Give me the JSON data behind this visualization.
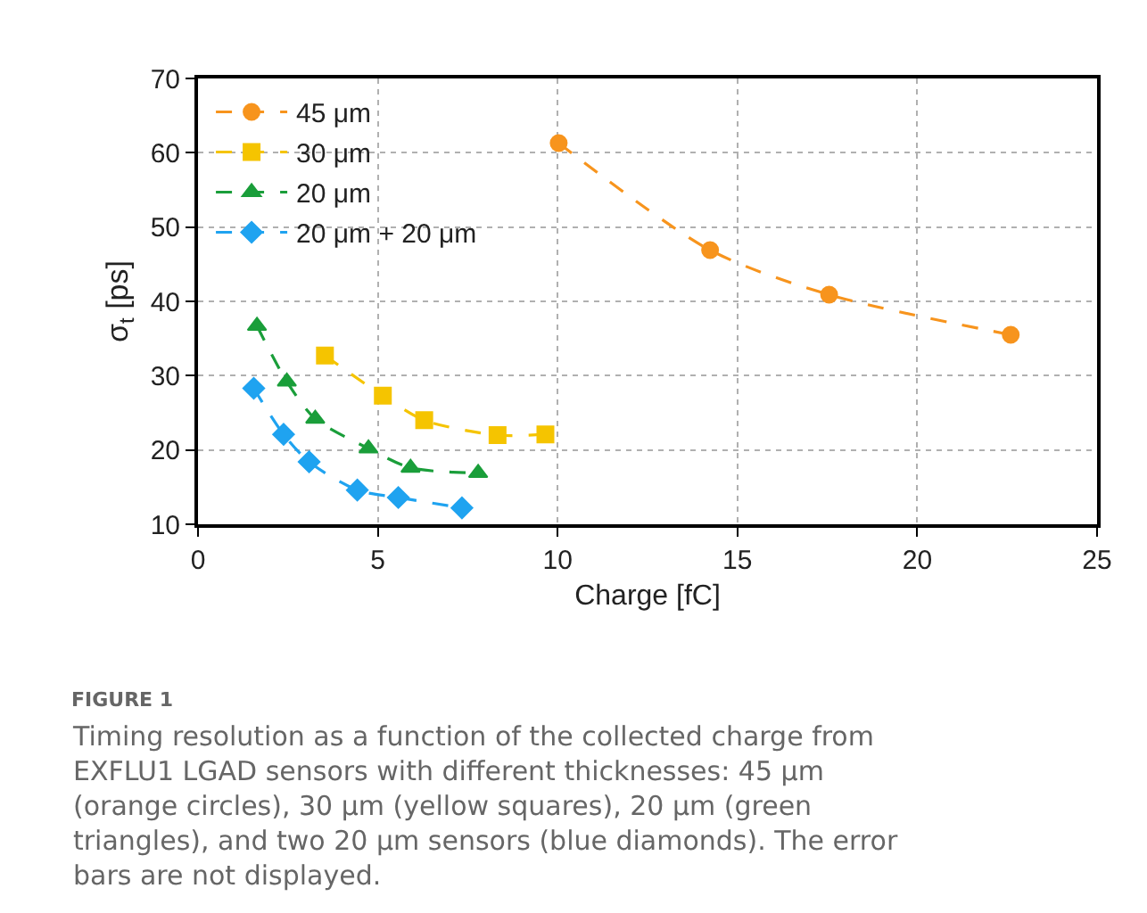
{
  "chart_data": {
    "type": "line",
    "xlabel": "Charge [fC]",
    "ylabel": "σ$_{t}$ [ps]",
    "xlim": [
      0,
      25
    ],
    "xticks": [
      0,
      5,
      10,
      15,
      20,
      25
    ],
    "ylim": [
      10,
      70
    ],
    "yticks": [
      10,
      20,
      30,
      40,
      50,
      60,
      70
    ],
    "grid": true,
    "legend": "top left",
    "line_style": "dashed",
    "series": [
      {
        "name": "45 μm",
        "color": "#f7941d",
        "marker": "circle",
        "x": [
          10.03,
          14.24,
          17.55,
          22.6
        ],
        "values": [
          61.3,
          46.9,
          40.9,
          35.5
        ]
      },
      {
        "name": "30 μm",
        "color": "#f5c400",
        "marker": "square",
        "x": [
          3.53,
          5.14,
          6.29,
          8.33,
          9.66
        ],
        "values": [
          32.7,
          27.3,
          24.0,
          22.0,
          22.1
        ]
      },
      {
        "name": "20 μm",
        "color": "#1a9e3a",
        "marker": "triangle",
        "x": [
          1.64,
          2.47,
          3.26,
          4.74,
          5.91,
          7.79
        ],
        "values": [
          36.7,
          29.2,
          24.2,
          20.2,
          17.6,
          16.9
        ]
      },
      {
        "name": "20 μm + 20 μm",
        "color": "#1fa3f0",
        "marker": "diamond",
        "x": [
          1.55,
          2.38,
          3.09,
          4.43,
          5.57,
          7.34
        ],
        "values": [
          28.3,
          22.1,
          18.4,
          14.6,
          13.6,
          12.2
        ]
      }
    ],
    "annotations": [
      "FIGURE 1",
      "Timing resolution as a function of the collected charge from EXFLU1 LGAD sensors with different thicknesses: 45 μm (orange circles), 30 μm (yellow squares), 20 μm (green triangles), and two 20 μm sensors (blue diamonds). The error bars are not displayed."
    ]
  }
}
